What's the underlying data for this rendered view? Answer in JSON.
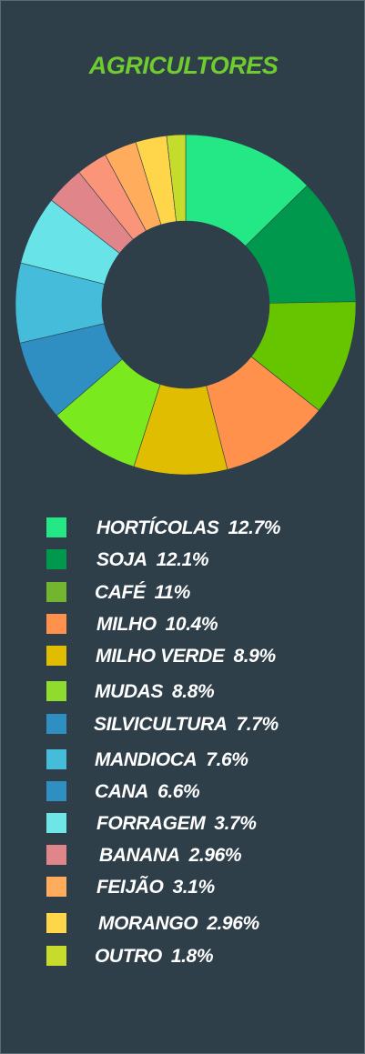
{
  "title": "AGRICULTORES",
  "chart_data": {
    "type": "pie",
    "title": "AGRICULTORES",
    "legend_position": "bottom",
    "slices": [
      {
        "label": "HORTÍCOLAS",
        "value": 12.7,
        "value_label": "12.7%",
        "color": "#24e885",
        "legend_color": "#24e885"
      },
      {
        "label": "SOJA",
        "value": 12.1,
        "value_label": "12.1%",
        "color": "#00984d",
        "legend_color": "#00984d"
      },
      {
        "label": "CAFÉ",
        "value": 11,
        "value_label": "11%",
        "color": "#67c500",
        "legend_color": "#73b52e"
      },
      {
        "label": "MILHO",
        "value": 10.4,
        "value_label": "10.4%",
        "color": "#ff914c",
        "legend_color": "#ff914c"
      },
      {
        "label": "MILHO VERDE",
        "value": 8.9,
        "value_label": "8.9%",
        "color": "#e0bd00",
        "legend_color": "#e0bd00"
      },
      {
        "label": "MUDAS",
        "value": 8.8,
        "value_label": "8.8%",
        "color": "#7aea1e",
        "legend_color": "#8fdb2e"
      },
      {
        "label": "SILVICULTURA",
        "value": 7.7,
        "value_label": "7.7%",
        "color": "#2f8ec2",
        "legend_color": "#2f8ec2"
      },
      {
        "label": "MANDIOCA",
        "value": 7.6,
        "value_label": "7.6%",
        "color": "#45bcd9",
        "legend_color": "#45bcd9"
      },
      {
        "label": "CANA",
        "value": 6.6,
        "value_label": "6.6%",
        "color": "#68e4e8",
        "legend_color": "#2f8ec2"
      },
      {
        "label": "FORRAGEM",
        "value": 3.7,
        "value_label": "3.7%",
        "color": "#e0868b",
        "legend_color": "#6fe6e6"
      },
      {
        "label": "BANANA",
        "value": 2.96,
        "value_label": "2.96%",
        "color": "#fa957a",
        "legend_color": "#e0868b"
      },
      {
        "label": "FEIJÃO",
        "value": 3.1,
        "value_label": "3.1%",
        "color": "#ffad5c",
        "legend_color": "#ffad5c"
      },
      {
        "label": "MORANGO",
        "value": 2.96,
        "value_label": "2.96%",
        "color": "#ffd54a",
        "legend_color": "#ffd54a"
      },
      {
        "label": "OUTRO",
        "value": 1.8,
        "value_label": "1.8%",
        "color": "#c6dc2c",
        "legend_color": "#c6dc2c"
      }
    ]
  }
}
